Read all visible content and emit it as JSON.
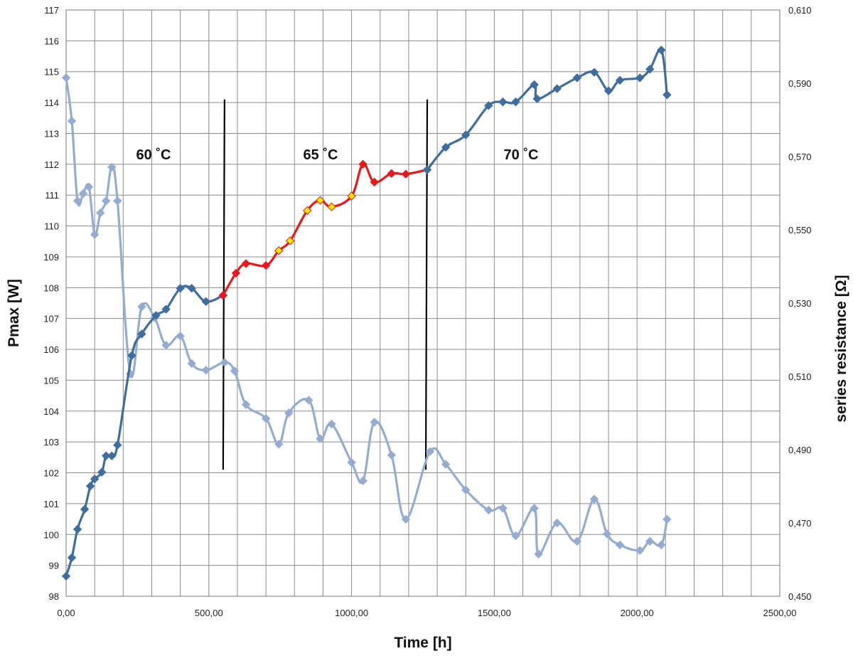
{
  "chart_data": {
    "type": "line",
    "xlabel": "Time [h]",
    "ylabel": "Pmax [W]",
    "y2label": "series resistance [Ω]",
    "xlim": [
      0,
      2500
    ],
    "ylim": [
      98,
      117
    ],
    "y2lim": [
      0.45,
      0.61
    ],
    "x_ticks": [
      "0,00",
      "500,00",
      "1000,00",
      "1500,00",
      "2000,00",
      "2500,00"
    ],
    "y_ticks": [
      "98",
      "99",
      "100",
      "101",
      "102",
      "103",
      "104",
      "105",
      "106",
      "107",
      "108",
      "109",
      "110",
      "111",
      "112",
      "113",
      "114",
      "115",
      "116",
      "117"
    ],
    "y2_ticks": [
      "0,450",
      "0,470",
      "0,490",
      "0,510",
      "0,530",
      "0,550",
      "0,570",
      "0,590",
      "0,610"
    ],
    "grid": true,
    "zone_labels": [
      "60 ˚C",
      "65 ˚C",
      "70 ˚C"
    ],
    "zone_lines": [
      {
        "x1": 555,
        "y1": 114.1,
        "x2": 550,
        "y2": 102.1
      },
      {
        "x1": 1265,
        "y1": 114.1,
        "x2": 1260,
        "y2": 102.1
      }
    ],
    "series": [
      {
        "axis": "left",
        "color": "#3f6d9e",
        "marker_fill": "#3f6d9e",
        "x": [
          0,
          20,
          40,
          65,
          85,
          100,
          125,
          140,
          160,
          180,
          230,
          265,
          315,
          350,
          400,
          440,
          490,
          550
        ],
        "y": [
          98.65,
          99.25,
          100.17,
          100.82,
          101.57,
          101.8,
          102.02,
          102.55,
          102.55,
          102.9,
          105.8,
          106.5,
          107.1,
          107.3,
          107.98,
          107.98,
          107.55,
          107.75
        ]
      },
      {
        "axis": "left",
        "color": "#e8191d",
        "marker_fill": "#e8191d",
        "x": [
          550,
          595,
          630,
          700,
          745,
          785,
          845,
          890,
          930,
          1000,
          1040,
          1080,
          1140,
          1190,
          1265
        ],
        "y": [
          107.75,
          108.47,
          108.78,
          108.72,
          109.2,
          109.52,
          110.5,
          110.83,
          110.62,
          110.97,
          112.0,
          111.42,
          111.7,
          111.68,
          111.82
        ],
        "highlighted_points": [
          4,
          5,
          6,
          7,
          8,
          9
        ]
      },
      {
        "axis": "left",
        "color": "#3f6d9e",
        "marker_fill": "#3f6d9e",
        "x": [
          1265,
          1330,
          1400,
          1480,
          1530,
          1575,
          1640,
          1650,
          1720,
          1790,
          1850,
          1900,
          1940,
          2010,
          2045,
          2085,
          2105
        ],
        "y": [
          111.82,
          112.55,
          112.95,
          113.9,
          114.02,
          114.02,
          114.58,
          114.12,
          114.45,
          114.8,
          114.98,
          114.38,
          114.72,
          114.8,
          115.08,
          115.7,
          114.25
        ]
      },
      {
        "axis": "right",
        "color": "#94acd0",
        "marker_fill": "#94acd0",
        "x": [
          0,
          20,
          40,
          60,
          80,
          100,
          120,
          140,
          160,
          180,
          225,
          265,
          310,
          350,
          400,
          440,
          490,
          555,
          590,
          630,
          700,
          745,
          780,
          850,
          890,
          930,
          1000,
          1040,
          1080,
          1140,
          1190,
          1275,
          1330,
          1400,
          1480,
          1530,
          1575,
          1640,
          1655,
          1720,
          1790,
          1850,
          1895,
          1940,
          2010,
          2045,
          2085,
          2105
        ],
        "y": [
          0.5915,
          0.5797,
          0.5579,
          0.5599,
          0.5617,
          0.5487,
          0.5546,
          0.5579,
          0.5671,
          0.5579,
          0.5107,
          0.529,
          0.526,
          0.5185,
          0.521,
          0.5135,
          0.5117,
          0.5138,
          0.5115,
          0.5023,
          0.4985,
          0.4915,
          0.5,
          0.5035,
          0.493,
          0.497,
          0.4865,
          0.4815,
          0.4975,
          0.4885,
          0.471,
          0.4895,
          0.486,
          0.479,
          0.4735,
          0.474,
          0.4665,
          0.474,
          0.4615,
          0.47,
          0.465,
          0.4765,
          0.467,
          0.464,
          0.4625,
          0.465,
          0.464,
          0.471
        ]
      }
    ]
  }
}
